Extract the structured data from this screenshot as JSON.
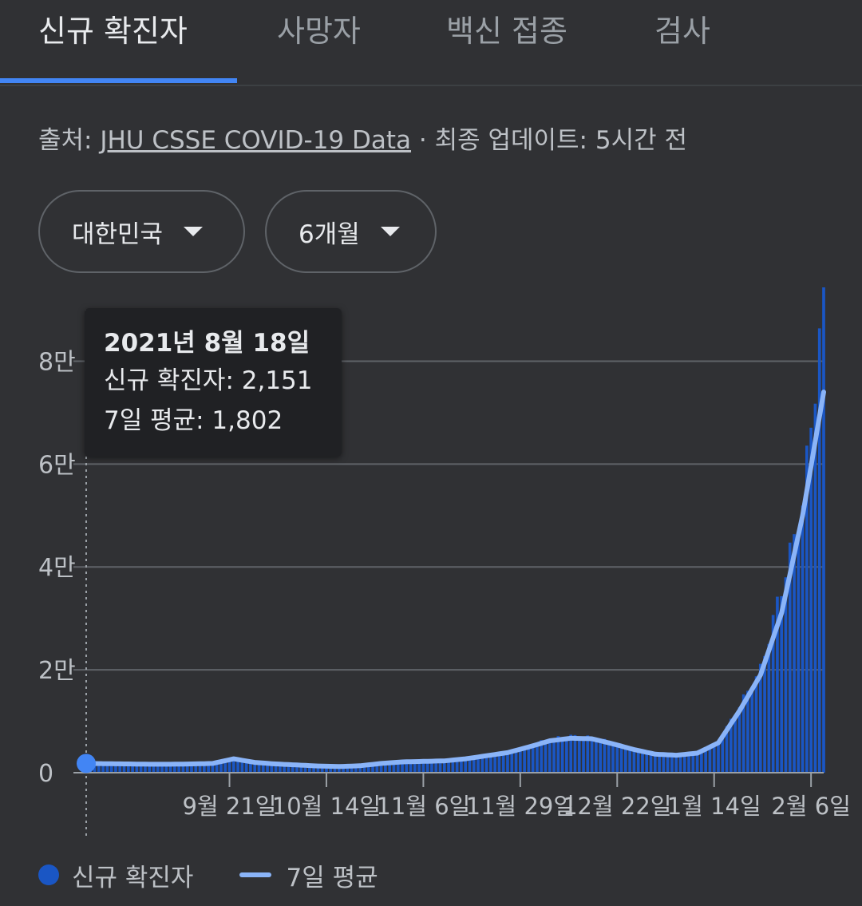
{
  "tabs": [
    {
      "label": "신규 확진자",
      "active": true
    },
    {
      "label": "사망자",
      "active": false
    },
    {
      "label": "백신 접종",
      "active": false
    },
    {
      "label": "검사",
      "active": false
    }
  ],
  "source": {
    "prefix": "출처:",
    "link": "JHU CSSE COVID-19 Data",
    "suffix": "· 최종 업데이트: 5시간 전"
  },
  "filters": {
    "country": "대한민국",
    "period": "6개월"
  },
  "tooltip": {
    "date": "2021년 8월 18일",
    "new_cases": "신규 확진자: 2,151",
    "avg": "7일 평균: 1,802"
  },
  "legend": {
    "bars": "신규 확진자",
    "line": "7일 평균"
  },
  "colors": {
    "bars": "#1a56c4",
    "line": "#8ab4f8",
    "marker": "#4285f4",
    "grid": "#5f6368",
    "tab_accent": "#4285f4"
  },
  "chart_data": {
    "type": "bar",
    "ylim": [
      0,
      90000
    ],
    "yticks": [
      {
        "value": 0,
        "label": "0"
      },
      {
        "value": 20000,
        "label": "2만"
      },
      {
        "value": 40000,
        "label": "4만"
      },
      {
        "value": 60000,
        "label": "6만"
      },
      {
        "value": 80000,
        "label": "8만"
      }
    ],
    "xticks": [
      {
        "day": 34,
        "label": "9월 21일"
      },
      {
        "day": 57,
        "label": "10월 14일"
      },
      {
        "day": 80,
        "label": "11월 6일"
      },
      {
        "day": 103,
        "label": "11월 29일"
      },
      {
        "day": 126,
        "label": "12월 22일"
      },
      {
        "day": 149,
        "label": "1월 14일"
      },
      {
        "day": 172,
        "label": "2월 6일"
      }
    ],
    "selected_day": 0,
    "series": [
      {
        "name": "신규 확진자",
        "type": "bar",
        "values_by_week": [
          2151,
          2050,
          1900,
          1800,
          1700,
          1600,
          1900,
          2700,
          2300,
          1900,
          1600,
          1400,
          1200,
          1300,
          1800,
          2200,
          2200,
          2300,
          2800,
          3500,
          4000,
          5200,
          6500,
          7100,
          6800,
          5800,
          4600,
          3600,
          3500,
          4000,
          5800,
          13000,
          20000,
          36000,
          52000,
          92000
        ]
      },
      {
        "name": "7일 평균",
        "type": "line",
        "values_by_week": [
          1802,
          1750,
          1700,
          1650,
          1650,
          1700,
          1800,
          2700,
          2000,
          1700,
          1500,
          1300,
          1200,
          1350,
          1800,
          2100,
          2200,
          2300,
          2700,
          3300,
          3900,
          5000,
          6200,
          6700,
          6600,
          5600,
          4500,
          3600,
          3400,
          3800,
          5800,
          12000,
          19000,
          31000,
          50000,
          74000
        ]
      }
    ]
  }
}
